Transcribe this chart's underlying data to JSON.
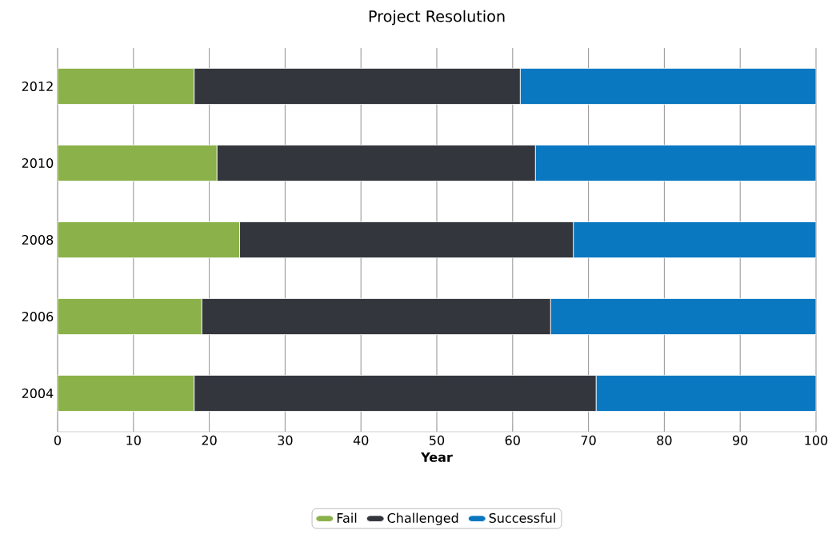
{
  "chart_data": {
    "type": "bar",
    "title": "Project Resolution",
    "xlabel": "Year",
    "orientation": "horizontal",
    "stacked": true,
    "categories": [
      "2012",
      "2010",
      "2008",
      "2006",
      "2004"
    ],
    "series": [
      {
        "name": "Fail",
        "color": "#8bb14a",
        "values": [
          18,
          21,
          24,
          19,
          18
        ]
      },
      {
        "name": "Challenged",
        "color": "#33363d",
        "values": [
          43,
          42,
          44,
          46,
          53
        ]
      },
      {
        "name": "Successful",
        "color": "#0a78c0",
        "values": [
          39,
          37,
          32,
          35,
          29
        ]
      }
    ],
    "xlim": [
      0,
      100
    ],
    "xticks": [
      0,
      10,
      20,
      30,
      40,
      50,
      60,
      70,
      80,
      90,
      100
    ],
    "grid": "x",
    "legend": "bottom"
  }
}
